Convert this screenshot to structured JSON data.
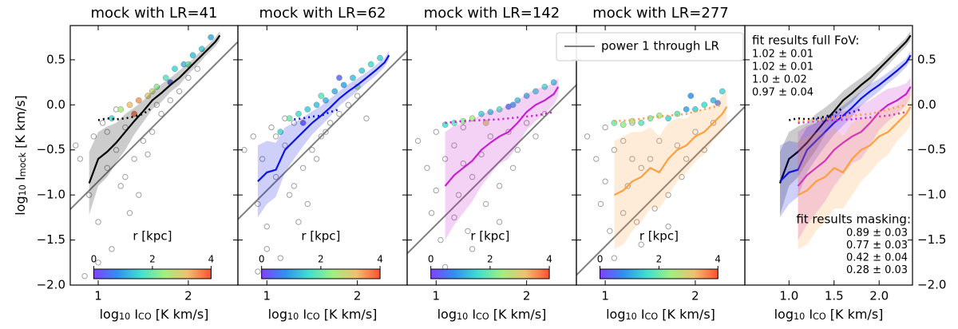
{
  "colormap": [
    "#8040ff",
    "#3090f0",
    "#40e0d0",
    "#a0f080",
    "#f0c070",
    "#ff5030"
  ],
  "legend": {
    "text": "power 1 through LR",
    "color": "#808080"
  },
  "chart_data": [
    {
      "type": "scatter",
      "title": "mock with LR=41",
      "ylabel_parts": [
        "log",
        "10",
        " I",
        "mock",
        " [K km/s]"
      ],
      "xlabel_parts": [
        "log",
        "10",
        " I",
        "CO",
        " [K km/s]"
      ],
      "xlim": [
        0.69,
        2.55
      ],
      "ylim": [
        -2,
        0.88
      ],
      "xticks": [
        1,
        2
      ],
      "yticks": [
        {
          "value": -2,
          "label": "−2.0"
        },
        {
          "value": -1.5,
          "label": "−1.5"
        },
        {
          "value": -1,
          "label": "−1.0"
        },
        {
          "value": -0.5,
          "label": "−0.5"
        },
        {
          "value": 0,
          "label": "0.0"
        },
        {
          "value": 0.5,
          "label": "0.5"
        }
      ],
      "power_line": {
        "slope": 1,
        "intercept": -1.85
      },
      "background_points": {
        "color": "#a0a0a0",
        "x": [
          0.75,
          0.8,
          0.9,
          0.95,
          1.0,
          1.05,
          1.1,
          1.15,
          1.2,
          1.25,
          1.3,
          1.35,
          1.4,
          1.5,
          1.6,
          1.7,
          1.8,
          1.9,
          2.0,
          2.1,
          0.85,
          1.0,
          1.1,
          1.2,
          1.3,
          1.45,
          1.55,
          1.65
        ],
        "y": [
          -0.45,
          -0.6,
          -1.0,
          -0.35,
          -1.3,
          -0.2,
          -0.7,
          -1.6,
          -0.5,
          -0.9,
          -0.25,
          -1.2,
          -0.6,
          -0.4,
          -0.3,
          -0.1,
          0.05,
          0.15,
          0.3,
          0.4,
          -1.9,
          -1.75,
          -0.3,
          -0.05,
          -0.8,
          -1.0,
          -0.55,
          0.0
        ]
      },
      "points": {
        "x": [
          1.15,
          1.25,
          1.35,
          1.45,
          1.55,
          1.65,
          1.75,
          1.85,
          1.95,
          2.05,
          2.15,
          2.25,
          1.4,
          1.6,
          1.8,
          2.0
        ],
        "y": [
          -0.15,
          -0.05,
          0.0,
          0.05,
          0.1,
          0.2,
          0.3,
          0.4,
          0.45,
          0.55,
          0.62,
          0.75,
          -0.1,
          0.15,
          0.25,
          0.45
        ],
        "r": [
          1.5,
          2.5,
          3.2,
          3.5,
          3.0,
          2.2,
          1.8,
          1.5,
          1.2,
          1.3,
          1.4,
          1.1,
          3.8,
          2.8,
          0.5,
          2.0
        ]
      },
      "colorbar": {
        "label": "r [kpc]",
        "lim": [
          0,
          4
        ],
        "ticks": [
          0,
          2,
          4
        ]
      },
      "binned": {
        "color": "#000000",
        "x": [
          0.9,
          1.0,
          1.1,
          1.2,
          1.3,
          1.4,
          1.5,
          1.6,
          1.7,
          1.8,
          1.9,
          2.0,
          2.1,
          2.2,
          2.3,
          2.35
        ],
        "y": [
          -0.87,
          -0.6,
          -0.52,
          -0.42,
          -0.3,
          -0.18,
          -0.07,
          0.05,
          0.13,
          0.22,
          0.3,
          0.4,
          0.5,
          0.6,
          0.7,
          0.77
        ],
        "err": [
          0.35,
          0.3,
          0.28,
          0.22,
          0.2,
          0.15,
          0.12,
          0.1,
          0.1,
          0.08,
          0.08,
          0.06,
          0.06,
          0.05,
          0.05,
          0.05
        ]
      },
      "binned_masked": {
        "x": [
          1.0,
          1.1,
          1.2,
          1.3,
          1.4,
          1.5,
          1.6
        ],
        "y": [
          -0.17,
          -0.15,
          -0.16,
          -0.15,
          -0.13,
          -0.1,
          -0.03
        ]
      }
    },
    {
      "type": "scatter",
      "title": "mock with LR=62",
      "xlabel_parts": [
        "log",
        "10",
        " I",
        "CO",
        " [K km/s]"
      ],
      "xlim": [
        0.68,
        2.55
      ],
      "ylim": [
        -2,
        0.88
      ],
      "xticks": [
        1,
        2
      ],
      "yticks": [
        -2,
        -1.5,
        -1,
        -0.5,
        0,
        0.5
      ],
      "power_line": {
        "slope": 1,
        "intercept": -1.95
      },
      "background_points": {
        "color": "#a0a0a0",
        "x": [
          0.75,
          0.85,
          0.9,
          0.95,
          1.0,
          1.05,
          1.1,
          1.15,
          1.2,
          1.25,
          1.3,
          1.35,
          1.4,
          1.5,
          1.6,
          1.7,
          1.8,
          1.9,
          2.0,
          2.1,
          0.9,
          1.0,
          1.1,
          1.2,
          1.3,
          1.45,
          1.55,
          1.65
        ],
        "y": [
          -0.5,
          -0.35,
          -1.1,
          -0.6,
          -1.35,
          -0.25,
          -0.8,
          -1.7,
          -0.45,
          -1.0,
          -0.2,
          -1.3,
          -0.7,
          -0.5,
          -0.35,
          -0.2,
          -0.1,
          0.0,
          0.1,
          -0.15,
          -1.85,
          -1.6,
          -0.35,
          -0.15,
          -0.9,
          -1.1,
          -0.6,
          -0.3
        ]
      },
      "points": {
        "x": [
          1.15,
          1.25,
          1.35,
          1.45,
          1.55,
          1.65,
          1.75,
          1.85,
          1.95,
          2.05,
          2.15,
          2.25,
          1.4,
          1.6,
          1.8,
          2.0
        ],
        "y": [
          -0.3,
          -0.15,
          -0.1,
          -0.05,
          0.0,
          0.05,
          0.15,
          0.22,
          0.3,
          0.38,
          0.45,
          0.52,
          -0.2,
          0.1,
          0.3,
          0.2
        ],
        "r": [
          1.5,
          2.0,
          1.6,
          1.4,
          1.3,
          1.2,
          1.1,
          1.0,
          1.3,
          1.4,
          1.6,
          1.5,
          0.2,
          1.8,
          0.4,
          2.5
        ]
      },
      "colorbar": {
        "label": "r [kpc]",
        "lim": [
          0,
          4
        ],
        "ticks": [
          0,
          2,
          4
        ]
      },
      "binned": {
        "color": "#0a14e6",
        "x": [
          0.9,
          1.0,
          1.1,
          1.2,
          1.3,
          1.4,
          1.5,
          1.6,
          1.7,
          1.8,
          1.9,
          2.0,
          2.1,
          2.2,
          2.3,
          2.35
        ],
        "y": [
          -0.85,
          -0.75,
          -0.72,
          -0.5,
          -0.4,
          -0.3,
          -0.2,
          -0.12,
          -0.03,
          0.07,
          0.15,
          0.22,
          0.3,
          0.38,
          0.47,
          0.55
        ],
        "err": [
          0.4,
          0.35,
          0.3,
          0.25,
          0.2,
          0.16,
          0.13,
          0.11,
          0.1,
          0.08,
          0.08,
          0.07,
          0.06,
          0.06,
          0.05,
          0.05
        ]
      },
      "binned_masked": {
        "x": [
          1.3,
          1.4,
          1.5,
          1.6,
          1.7,
          1.8
        ],
        "y": [
          -0.16,
          -0.15,
          -0.13,
          -0.12,
          -0.08,
          -0.05
        ]
      }
    },
    {
      "type": "scatter",
      "title": "mock with LR=142",
      "xlabel_parts": [
        "log",
        "10",
        " I",
        "CO",
        " [K km/s]"
      ],
      "xlim": [
        0.68,
        2.55
      ],
      "ylim": [
        -2,
        0.88
      ],
      "xticks": [
        1,
        2
      ],
      "yticks": [
        -2,
        -1.5,
        -1,
        -0.5,
        0,
        0.5
      ],
      "power_line": {
        "slope": 1,
        "intercept": -2.33
      },
      "background_points": {
        "color": "#a0a0a0",
        "x": [
          0.8,
          0.9,
          0.95,
          1.0,
          1.05,
          1.1,
          1.15,
          1.2,
          1.25,
          1.3,
          1.35,
          1.4,
          1.5,
          1.6,
          1.7,
          1.8,
          1.9,
          2.0,
          2.1,
          2.2,
          1.0,
          1.1,
          1.2,
          1.3,
          1.4,
          1.55,
          1.7,
          1.85
        ],
        "y": [
          -0.4,
          -0.7,
          -1.2,
          -0.3,
          -1.5,
          -0.6,
          -1.9,
          -0.45,
          -1.0,
          -0.25,
          -1.4,
          -0.8,
          -0.55,
          -0.35,
          -0.9,
          -0.3,
          -0.5,
          -0.2,
          -0.35,
          -0.1,
          -0.95,
          -1.8,
          -1.25,
          -0.65,
          -1.6,
          -1.1,
          -1.3,
          -0.7
        ]
      },
      "points": {
        "x": [
          1.1,
          1.2,
          1.3,
          1.4,
          1.5,
          1.6,
          1.7,
          1.8,
          1.9,
          2.0,
          2.1,
          2.2,
          2.3,
          1.55,
          1.85
        ],
        "y": [
          -0.22,
          -0.2,
          -0.18,
          -0.15,
          -0.1,
          -0.08,
          -0.05,
          -0.02,
          0.05,
          0.1,
          0.15,
          0.2,
          0.25,
          -0.2,
          0.0
        ],
        "r": [
          1.6,
          1.8,
          2.2,
          2.5,
          1.5,
          1.3,
          1.7,
          0.6,
          1.4,
          1.2,
          1.5,
          1.6,
          1.3,
          3.0,
          1.0
        ]
      },
      "colorbar": {
        "label": "r [kpc]",
        "lim": [
          0,
          4
        ],
        "ticks": [
          0,
          2,
          4
        ]
      },
      "binned": {
        "color": "#c81ed2",
        "x": [
          1.1,
          1.2,
          1.3,
          1.4,
          1.5,
          1.6,
          1.7,
          1.8,
          1.9,
          2.0,
          2.1,
          2.2,
          2.3,
          2.35
        ],
        "y": [
          -0.9,
          -0.78,
          -0.7,
          -0.62,
          -0.5,
          -0.42,
          -0.35,
          -0.3,
          -0.2,
          -0.08,
          0.0,
          0.05,
          0.12,
          0.2
        ],
        "err": [
          0.6,
          0.55,
          0.5,
          0.45,
          0.4,
          0.35,
          0.3,
          0.3,
          0.25,
          0.2,
          0.18,
          0.15,
          0.12,
          0.1
        ]
      },
      "binned_masked": {
        "x": [
          1.1,
          1.3,
          1.5,
          1.7,
          1.9,
          2.1,
          2.3
        ],
        "y": [
          -0.2,
          -0.18,
          -0.17,
          -0.16,
          -0.14,
          -0.12,
          -0.08
        ]
      }
    },
    {
      "type": "scatter",
      "title": "mock with LR=277",
      "xlabel_parts": [
        "log",
        "10",
        " I",
        "CO",
        " [K km/s]"
      ],
      "xlim": [
        0.68,
        2.55
      ],
      "ylim": [
        -2,
        0.88
      ],
      "xticks": [
        1,
        2
      ],
      "yticks": [
        -2,
        -1.5,
        -1,
        -0.5,
        0,
        0.5
      ],
      "power_line": {
        "slope": 1,
        "intercept": -2.57
      },
      "background_points": {
        "color": "#a0a0a0",
        "x": [
          0.8,
          0.9,
          0.95,
          1.0,
          1.05,
          1.1,
          1.15,
          1.2,
          1.25,
          1.3,
          1.35,
          1.4,
          1.5,
          1.6,
          1.7,
          1.8,
          1.9,
          2.0,
          2.1,
          2.2,
          1.0,
          1.1,
          1.2,
          1.3,
          1.4,
          1.55,
          1.7,
          1.85
        ],
        "y": [
          -0.35,
          -0.6,
          -1.1,
          -0.25,
          -1.4,
          -0.5,
          -1.85,
          -0.4,
          -0.9,
          -0.2,
          -1.3,
          -0.7,
          -0.6,
          -0.4,
          -1.0,
          -0.45,
          -0.6,
          -0.3,
          -0.5,
          -0.2,
          -0.85,
          -1.7,
          -1.2,
          -0.6,
          -1.55,
          -1.15,
          -1.35,
          -0.8
        ]
      },
      "points": {
        "x": [
          1.1,
          1.2,
          1.3,
          1.4,
          1.5,
          1.6,
          1.7,
          1.8,
          1.9,
          2.0,
          2.1,
          2.2,
          2.3,
          1.95,
          2.25
        ],
        "y": [
          -0.2,
          -0.22,
          -0.18,
          -0.2,
          -0.15,
          -0.12,
          -0.15,
          -0.1,
          -0.05,
          -0.05,
          0.0,
          0.05,
          0.15,
          0.1,
          0.02
        ],
        "r": [
          2.0,
          2.3,
          2.6,
          1.8,
          2.1,
          2.4,
          1.5,
          1.8,
          1.0,
          1.4,
          1.6,
          1.2,
          1.5,
          0.8,
          0.5
        ]
      },
      "colorbar": {
        "label": "r [kpc]",
        "lim": [
          0,
          4
        ],
        "ticks": [
          0,
          2,
          4
        ]
      },
      "binned": {
        "color": "#ffa03c",
        "x": [
          1.1,
          1.2,
          1.3,
          1.4,
          1.5,
          1.6,
          1.7,
          1.8,
          1.9,
          2.0,
          2.1,
          2.2,
          2.3,
          2.35
        ],
        "y": [
          -1.0,
          -0.95,
          -0.85,
          -0.8,
          -0.7,
          -0.75,
          -0.6,
          -0.5,
          -0.45,
          -0.35,
          -0.3,
          -0.2,
          -0.1,
          -0.02
        ],
        "err": [
          0.6,
          0.6,
          0.55,
          0.5,
          0.45,
          0.4,
          0.4,
          0.35,
          0.3,
          0.28,
          0.25,
          0.2,
          0.2,
          0.2
        ]
      },
      "binned_masked": {
        "x": [
          1.1,
          1.3,
          1.5,
          1.7,
          1.9,
          2.1,
          2.3
        ],
        "y": [
          -0.18,
          -0.17,
          -0.14,
          -0.12,
          -0.1,
          -0.05,
          0.0
        ]
      }
    },
    {
      "type": "line",
      "xlabel_parts": [
        "log",
        "10",
        " I",
        "CO",
        " [K km/s]"
      ],
      "xlim": [
        0.51,
        2.37
      ],
      "ylim": [
        -2,
        0.88
      ],
      "xticks": [
        {
          "value": 1,
          "label": "1.0"
        },
        {
          "value": 1.5,
          "label": "1.5"
        },
        {
          "value": 2,
          "label": "2.0"
        }
      ],
      "yticks": [
        {
          "value": -2,
          "label": "−2.0"
        },
        {
          "value": -1.5,
          "label": "−1.5"
        },
        {
          "value": -1,
          "label": "−1.0"
        },
        {
          "value": -0.5,
          "label": "−0.5"
        },
        {
          "value": 0,
          "label": "0.0"
        },
        {
          "value": 0.5,
          "label": "0.5"
        }
      ],
      "fit_full": {
        "title": "fit results full FoV:",
        "values": [
          "1.02 ± 0.01",
          "1.02 ± 0.01",
          "1.0 ± 0.02",
          "0.97 ± 0.04"
        ]
      },
      "fit_masking": {
        "title": "fit results masking:",
        "values": [
          "0.89 ± 0.03",
          "0.77 ± 0.03",
          "0.42 ± 0.04",
          "0.28 ± 0.03"
        ]
      }
    }
  ]
}
